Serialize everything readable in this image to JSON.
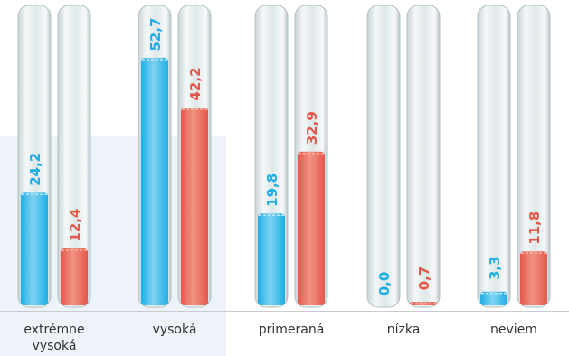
{
  "chart_data": {
    "type": "bar",
    "categories": [
      "extrémne\nvysoká",
      "vysoká",
      "primeraná",
      "nízka",
      "neviem"
    ],
    "series": [
      {
        "values": [
          24.2,
          52.7,
          19.8,
          0.0,
          3.3
        ],
        "color": "#1eaee6"
      },
      {
        "values": [
          12.4,
          42.2,
          32.9,
          0.7,
          11.8
        ],
        "color": "#e4574a"
      }
    ],
    "value_labels": [
      [
        "24,2",
        "52,7",
        "19,8",
        "0,0",
        "3,3"
      ],
      [
        "12,4",
        "42,2",
        "32,9",
        "0,7",
        "11,8"
      ]
    ],
    "ylim": [
      0,
      60
    ],
    "grid": false,
    "legend": "none",
    "style": "test-tubes"
  }
}
